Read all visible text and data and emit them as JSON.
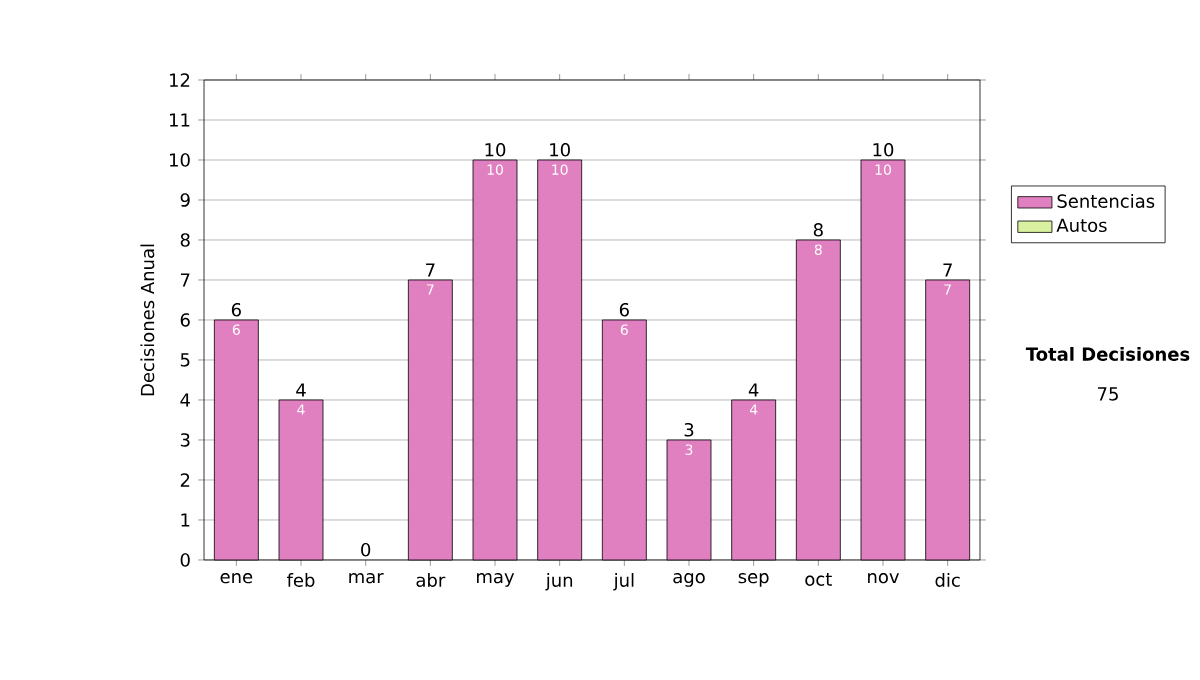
{
  "chart_data": {
    "type": "bar",
    "ylabel": "Decisiones Anual",
    "categories": [
      "ene",
      "feb",
      "mar",
      "abr",
      "may",
      "jun",
      "jul",
      "ago",
      "sep",
      "oct",
      "nov",
      "dic"
    ],
    "series": [
      {
        "name": "Sentencias",
        "color": "#e080c0",
        "values": [
          6,
          4,
          0,
          7,
          10,
          10,
          6,
          3,
          4,
          8,
          10,
          7
        ],
        "value_labels": [
          "6",
          "4",
          null,
          "7",
          "10",
          "10",
          "6",
          "3",
          "4",
          "8",
          "10",
          "7"
        ]
      },
      {
        "name": "Autos",
        "color": "#d8f0a0",
        "values": [
          0,
          0,
          0,
          0,
          0,
          0,
          0,
          0,
          0,
          0,
          0,
          0
        ]
      }
    ],
    "stacked": true,
    "totals": [
      "6",
      "4",
      "0",
      "7",
      "10",
      "10",
      "6",
      "3",
      "4",
      "8",
      "10",
      "7"
    ],
    "ylim": [
      0,
      12
    ],
    "yticks": [
      0,
      1,
      2,
      3,
      4,
      5,
      6,
      7,
      8,
      9,
      10,
      11,
      12
    ],
    "grid": "y",
    "legend": "right",
    "annotations": [
      "Total Decisiones",
      "75"
    ]
  }
}
